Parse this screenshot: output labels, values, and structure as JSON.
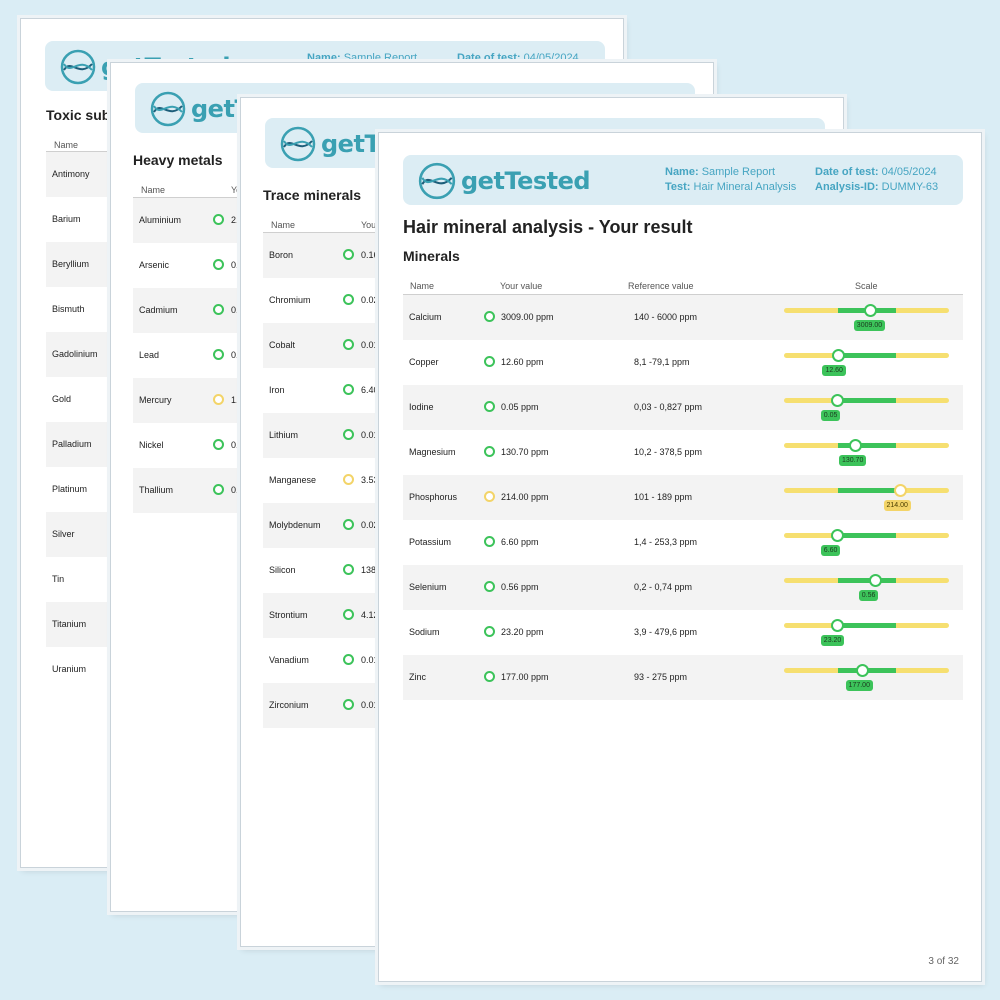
{
  "brand": {
    "get": "get",
    "tested": "Tested"
  },
  "meta": {
    "name_label": "Name:",
    "name_value": "Sample Report",
    "date_label": "Date of test:",
    "date_value": "04/05/2024",
    "test_label": "Test:",
    "test_value": "Hair Mineral Analysis",
    "id_label": "Analysis-ID:",
    "id_value": "DUMMY-63"
  },
  "page1": {
    "title": "Toxic sub",
    "col_name": "Name",
    "rows": [
      "Antimony",
      "Barium",
      "Beryllium",
      "Bismuth",
      "Gadolinium",
      "Gold",
      "Palladium",
      "Platinum",
      "Silver",
      "Tin",
      "Titanium",
      "Uranium"
    ]
  },
  "page2": {
    "title": "Heavy metals",
    "col_name": "Name",
    "col_value": "Yo",
    "rows": [
      {
        "name": "Aluminium",
        "value": "2.",
        "status": "ok"
      },
      {
        "name": "Arsenic",
        "value": "0.",
        "status": "ok"
      },
      {
        "name": "Cadmium",
        "value": "0.",
        "status": "ok"
      },
      {
        "name": "Lead",
        "value": "0.",
        "status": "ok"
      },
      {
        "name": "Mercury",
        "value": "1.",
        "status": "warn"
      },
      {
        "name": "Nickel",
        "value": "0.",
        "status": "ok"
      },
      {
        "name": "Thallium",
        "value": "0.",
        "status": "ok"
      }
    ]
  },
  "page3": {
    "title": "Trace minerals",
    "col_name": "Name",
    "col_value": "You",
    "rows": [
      {
        "name": "Boron",
        "value": "0.16",
        "status": "ok"
      },
      {
        "name": "Chromium",
        "value": "0.02",
        "status": "ok"
      },
      {
        "name": "Cobalt",
        "value": "0.01",
        "status": "ok"
      },
      {
        "name": "Iron",
        "value": "6.40",
        "status": "ok"
      },
      {
        "name": "Lithium",
        "value": "0.01",
        "status": "ok"
      },
      {
        "name": "Manganese",
        "value": "3.53",
        "status": "warn"
      },
      {
        "name": "Molybdenum",
        "value": "0.02",
        "status": "ok"
      },
      {
        "name": "Silicon",
        "value": "138",
        "status": "ok"
      },
      {
        "name": "Strontium",
        "value": "4.12",
        "status": "ok"
      },
      {
        "name": "Vanadium",
        "value": "0.01",
        "status": "ok"
      },
      {
        "name": "Zirconium",
        "value": "0.01",
        "status": "ok"
      }
    ]
  },
  "page4": {
    "title": "Hair mineral analysis - Your result",
    "subtitle": "Minerals",
    "col_name": "Name",
    "col_value": "Your value",
    "col_ref": "Reference value",
    "col_scale": "Scale",
    "page_number": "3 of 32",
    "rows": [
      {
        "name": "Calcium",
        "value": "3009.00 ppm",
        "ref": "140 - 6000 ppm",
        "tag": "3009.00",
        "level": 0.52,
        "status": "ok"
      },
      {
        "name": "Copper",
        "value": "12.60 ppm",
        "ref": "8,1 -79,1 ppm",
        "tag": "12.60",
        "level": 0.33,
        "status": "ok"
      },
      {
        "name": "Iodine",
        "value": "0.05 ppm",
        "ref": "0,03 - 0,827 ppm",
        "tag": "0.05",
        "level": 0.32,
        "status": "ok"
      },
      {
        "name": "Magnesium",
        "value": "130.70 ppm",
        "ref": "10,2 - 378,5 ppm",
        "tag": "130.70",
        "level": 0.43,
        "status": "ok"
      },
      {
        "name": "Phosphorus",
        "value": "214.00 ppm",
        "ref": "101 - 189 ppm",
        "tag": "214.00",
        "level": 0.7,
        "status": "warn"
      },
      {
        "name": "Potassium",
        "value": "6.60 ppm",
        "ref": "1,4 - 253,3 ppm",
        "tag": "6.60",
        "level": 0.32,
        "status": "ok"
      },
      {
        "name": "Selenium",
        "value": "0.56 ppm",
        "ref": "0,2 - 0,74 ppm",
        "tag": "0.56",
        "level": 0.55,
        "status": "ok"
      },
      {
        "name": "Sodium",
        "value": "23.20 ppm",
        "ref": "3,9 - 479,6 ppm",
        "tag": "23.20",
        "level": 0.32,
        "status": "ok"
      },
      {
        "name": "Zinc",
        "value": "177.00 ppm",
        "ref": "93 - 275 ppm",
        "tag": "177.00",
        "level": 0.47,
        "status": "ok"
      }
    ]
  },
  "colors": {
    "ok": "#3cc35a",
    "warn": "#f3d468",
    "accent": "#46a5c2"
  }
}
